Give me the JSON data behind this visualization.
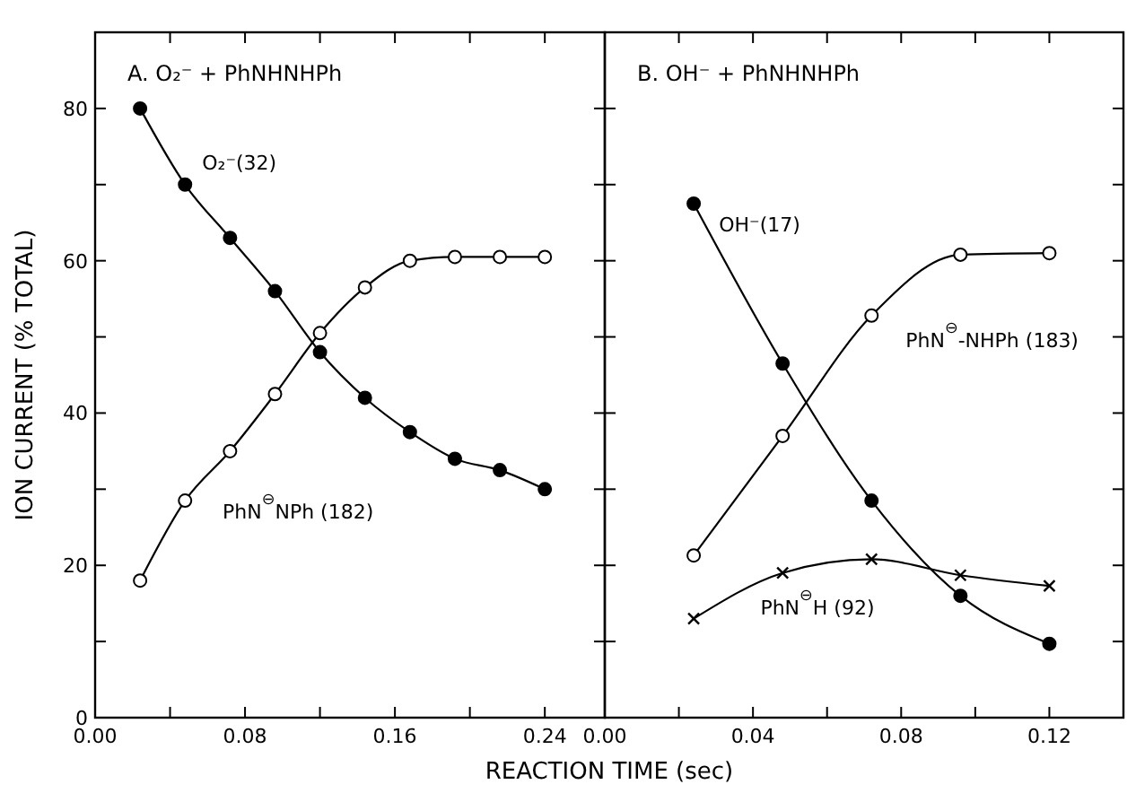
{
  "chart_data": [
    {
      "type": "line",
      "title": "A. O₂⁻ + PhNHNHPh",
      "ylabel": "ION CURRENT (% TOTAL)",
      "xlabel": "REACTION TIME (sec)",
      "xlim": [
        0,
        0.272
      ],
      "ylim": [
        0,
        90
      ],
      "xticks": [
        {
          "value": 0,
          "label": "0.00"
        },
        {
          "value": 0.04,
          "label": null
        },
        {
          "value": 0.08,
          "label": "0.08"
        },
        {
          "value": 0.12,
          "label": null
        },
        {
          "value": 0.16,
          "label": "0.16"
        },
        {
          "value": 0.2,
          "label": null
        },
        {
          "value": 0.24,
          "label": "0.24"
        }
      ],
      "yticks": [
        0,
        {
          "value": 10,
          "label": null
        },
        20,
        {
          "value": 30,
          "label": null
        },
        40,
        {
          "value": 50,
          "label": null
        },
        60,
        {
          "value": 70,
          "label": null
        },
        80
      ],
      "x": [
        0.024,
        0.048,
        0.072,
        0.096,
        0.12,
        0.144,
        0.168,
        0.192,
        0.216,
        0.24
      ],
      "grid": false,
      "line_style": "solid",
      "series": [
        {
          "name": "O₂⁻(32)",
          "color": "#000000",
          "marker": "circle",
          "values": [
            80,
            70,
            63,
            56,
            48,
            42,
            37.5,
            34,
            32.5,
            30
          ]
        },
        {
          "name": "PhN$^{⊖}$NPh (182)",
          "color": "#000000",
          "marker": "circle",
          "values": [
            18,
            28.5,
            35,
            42.5,
            50.5,
            56.5,
            60,
            60.5,
            60.5,
            60.5
          ]
        }
      ]
    },
    {
      "type": "line",
      "title": "B. OH⁻ + PhNHNHPh",
      "xlim": [
        0,
        0.14
      ],
      "ylim": [
        0,
        90
      ],
      "tick_labels": "x",
      "xticks": [
        {
          "value": 0,
          "label": "0.00"
        },
        {
          "value": 0.02,
          "label": null
        },
        {
          "value": 0.04,
          "label": "0.04"
        },
        {
          "value": 0.06,
          "label": null
        },
        {
          "value": 0.08,
          "label": "0.08"
        },
        {
          "value": 0.1,
          "label": null
        },
        {
          "value": 0.12,
          "label": "0.12"
        }
      ],
      "yticks": [
        {
          "value": 10,
          "label": null
        },
        {
          "value": 20,
          "label": null
        },
        {
          "value": 30,
          "label": null
        },
        {
          "value": 40,
          "label": null
        },
        {
          "value": 50,
          "label": null
        },
        {
          "value": 60,
          "label": null
        },
        {
          "value": 70,
          "label": null
        },
        {
          "value": 80,
          "label": null
        }
      ],
      "x": [
        0.024,
        0.048,
        0.072,
        0.096,
        0.12
      ],
      "grid": false,
      "line_style": "solid",
      "series": [
        {
          "name": "OH⁻(17)",
          "color": "#000000",
          "marker": "circle",
          "values": [
            67.5,
            46.5,
            28.5,
            16,
            9.7
          ]
        },
        {
          "name": "PhN$^{⊖}$-NHPh (183)",
          "color": "#000000",
          "marker": "circle",
          "values": [
            21.3,
            37,
            52.8,
            60.8,
            61
          ]
        },
        {
          "name": "PhN$^{⊖}$H (92)",
          "color": "#000000",
          "marker": "cross",
          "values": [
            13,
            19,
            20.8,
            18.7,
            17.3
          ]
        }
      ]
    }
  ]
}
